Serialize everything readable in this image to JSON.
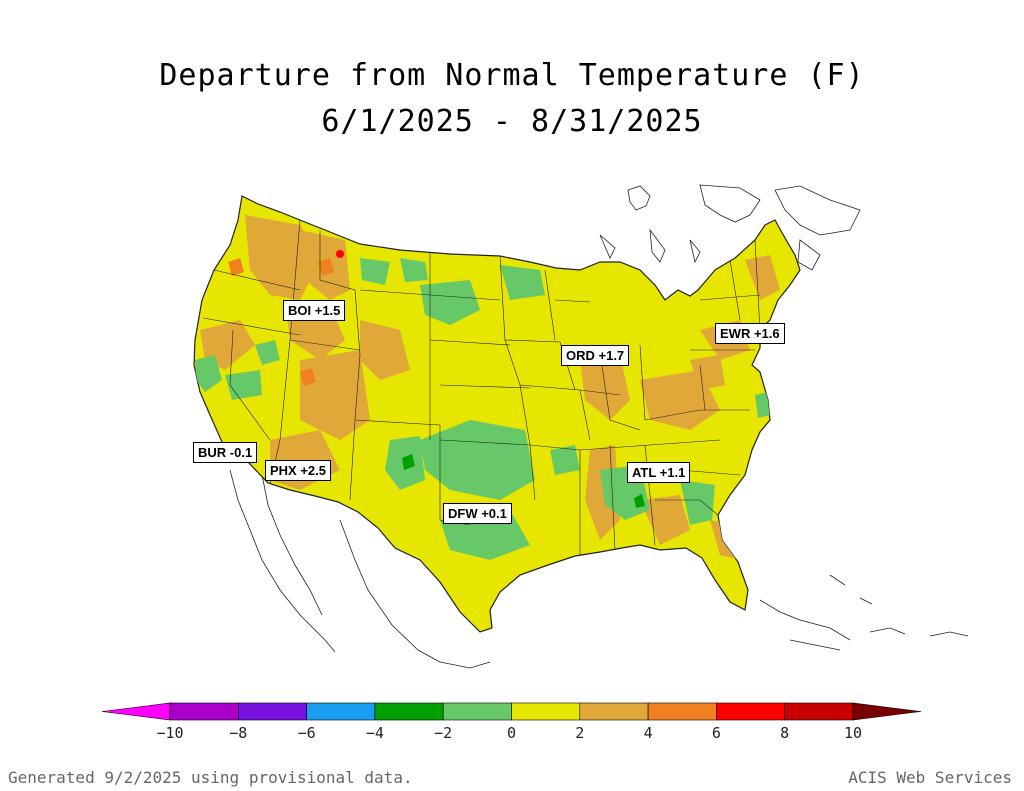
{
  "title": {
    "line1": "Departure from Normal Temperature (F)",
    "line2": "6/1/2025 - 8/31/2025"
  },
  "stations": [
    {
      "id": "BOI",
      "label": "BOI +1.5",
      "value": 1.5
    },
    {
      "id": "ORD",
      "label": "ORD +1.7",
      "value": 1.7
    },
    {
      "id": "EWR",
      "label": "EWR +1.6",
      "value": 1.6
    },
    {
      "id": "BUR",
      "label": "BUR -0.1",
      "value": -0.1
    },
    {
      "id": "PHX",
      "label": "PHX +2.5",
      "value": 2.5
    },
    {
      "id": "DFW",
      "label": "DFW +0.1",
      "value": 0.1
    },
    {
      "id": "ATL",
      "label": "ATL +1.1",
      "value": 1.1
    }
  ],
  "colorbar": {
    "colors": [
      "#ff00ff",
      "#aa00cc",
      "#7a10e0",
      "#1a9cf0",
      "#00a000",
      "#66c866",
      "#e6e600",
      "#e0a838",
      "#f08020",
      "#ff0000",
      "#c80000",
      "#7a0000"
    ],
    "ticks": [
      "−10",
      "−8",
      "−6",
      "−4",
      "−2",
      "0",
      "2",
      "4",
      "6",
      "8",
      "10"
    ]
  },
  "footer": {
    "left": "Generated 9/2/2025 using provisional data.",
    "right": "ACIS Web Services"
  }
}
